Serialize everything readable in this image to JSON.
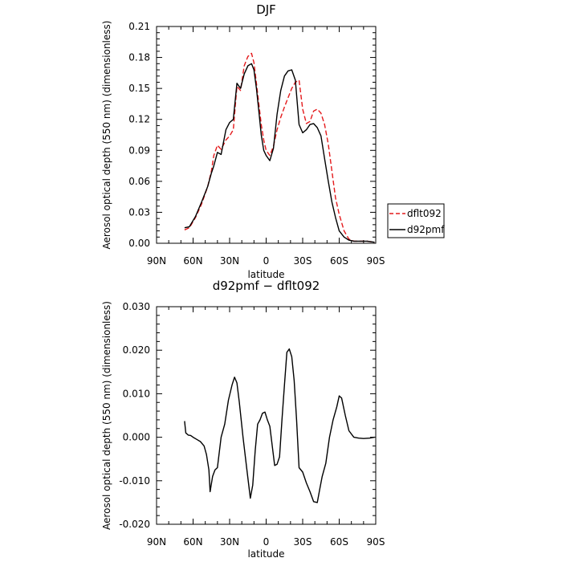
{
  "chart_data": [
    {
      "type": "line",
      "title": "DJF",
      "xlabel": "latitude",
      "ylabel": "Aerosol optical depth (550 nm) (dimensionless)",
      "xlim": [
        90,
        -90
      ],
      "ylim": [
        0,
        0.21
      ],
      "x_tick_values": [
        90,
        60,
        30,
        0,
        -30,
        -60,
        -90
      ],
      "x_tick_labels": [
        "90N",
        "60N",
        "30N",
        "0",
        "30S",
        "60S",
        "90S"
      ],
      "y_tick_values": [
        0,
        0.03,
        0.06,
        0.09,
        0.12,
        0.15,
        0.18,
        0.21
      ],
      "y_tick_labels": [
        "0.00",
        "0.03",
        "0.06",
        "0.09",
        "0.12",
        "0.15",
        "0.18",
        "0.21"
      ],
      "legend_position": "right",
      "grid": false,
      "series": [
        {
          "name": "dflt092",
          "color": "#e41a1c",
          "style": "dashed",
          "x": [
            67,
            63,
            58,
            53,
            48,
            45,
            43,
            40,
            37,
            33,
            30,
            27,
            24,
            21,
            18,
            15,
            12,
            10,
            8,
            6,
            4,
            2,
            0,
            -3,
            -6,
            -9,
            -12,
            -15,
            -18,
            -21,
            -24,
            -27,
            -30,
            -33,
            -36,
            -39,
            -42,
            -45,
            -48,
            -51,
            -54,
            -57,
            -60,
            -64,
            -68,
            -72,
            -77,
            -83,
            -89
          ],
          "y": [
            0.013,
            0.015,
            0.025,
            0.038,
            0.055,
            0.07,
            0.085,
            0.095,
            0.091,
            0.1,
            0.104,
            0.11,
            0.152,
            0.148,
            0.172,
            0.181,
            0.184,
            0.175,
            0.155,
            0.135,
            0.115,
            0.1,
            0.09,
            0.085,
            0.094,
            0.11,
            0.122,
            0.132,
            0.141,
            0.15,
            0.156,
            0.158,
            0.13,
            0.116,
            0.118,
            0.128,
            0.13,
            0.126,
            0.115,
            0.096,
            0.07,
            0.044,
            0.028,
            0.012,
            0.004,
            0.002,
            0.002,
            0.002,
            0.001
          ]
        },
        {
          "name": "d92pmf",
          "color": "#000000",
          "style": "solid",
          "x": [
            67,
            63,
            58,
            53,
            48,
            45,
            43,
            40,
            37,
            33,
            30,
            27,
            24,
            21,
            18,
            15,
            12,
            10,
            8,
            6,
            4,
            2,
            0,
            -3,
            -6,
            -9,
            -12,
            -15,
            -18,
            -21,
            -24,
            -27,
            -30,
            -33,
            -36,
            -39,
            -42,
            -45,
            -48,
            -51,
            -54,
            -57,
            -60,
            -64,
            -68,
            -72,
            -77,
            -83,
            -89
          ],
          "y": [
            0.015,
            0.016,
            0.026,
            0.04,
            0.055,
            0.068,
            0.075,
            0.088,
            0.086,
            0.11,
            0.117,
            0.12,
            0.155,
            0.15,
            0.164,
            0.172,
            0.174,
            0.168,
            0.15,
            0.128,
            0.105,
            0.09,
            0.085,
            0.08,
            0.092,
            0.125,
            0.148,
            0.162,
            0.167,
            0.168,
            0.158,
            0.115,
            0.107,
            0.11,
            0.115,
            0.116,
            0.112,
            0.104,
            0.082,
            0.06,
            0.04,
            0.025,
            0.012,
            0.006,
            0.003,
            0.002,
            0.002,
            0.002,
            0.001
          ]
        }
      ]
    },
    {
      "type": "line",
      "title": "d92pmf − dflt092",
      "xlabel": "latitude",
      "ylabel": "Aerosol optical depth (550 nm) (dimensionless)",
      "xlim": [
        90,
        -90
      ],
      "ylim": [
        -0.02,
        0.03
      ],
      "x_tick_values": [
        90,
        60,
        30,
        0,
        -30,
        -60,
        -90
      ],
      "x_tick_labels": [
        "90N",
        "60N",
        "30N",
        "0",
        "30S",
        "60S",
        "90S"
      ],
      "y_tick_values": [
        -0.02,
        -0.01,
        0,
        0.01,
        0.02,
        0.03
      ],
      "y_tick_labels": [
        "-0.020",
        "-0.010",
        "0.000",
        "0.010",
        "0.020",
        "0.030"
      ],
      "grid": false,
      "series": [
        {
          "color": "#000000",
          "style": "solid",
          "x": [
            67,
            66,
            64,
            62,
            60,
            57,
            54,
            51,
            49,
            47,
            46,
            44,
            42,
            40,
            37,
            34,
            31,
            28,
            26,
            24,
            22,
            19,
            16,
            13,
            11,
            9,
            7,
            5,
            3,
            1,
            -1,
            -3,
            -5,
            -7,
            -9,
            -11,
            -13,
            -15,
            -17,
            -19,
            -21,
            -23,
            -25,
            -27,
            -30,
            -33,
            -36,
            -39,
            -42,
            -44,
            -46,
            -49,
            -52,
            -55,
            -58,
            -60,
            -62,
            -65,
            -68,
            -72,
            -76,
            -80,
            -85,
            -89
          ],
          "y": [
            0.0037,
            0.001,
            0.0005,
            0.0004,
            0.0,
            -0.0005,
            -0.001,
            -0.002,
            -0.004,
            -0.0075,
            -0.0125,
            -0.009,
            -0.0075,
            -0.007,
            0.0,
            0.003,
            0.0085,
            0.012,
            0.0138,
            0.0125,
            0.008,
            0.0,
            -0.007,
            -0.014,
            -0.011,
            -0.003,
            0.003,
            0.004,
            0.0055,
            0.0058,
            0.004,
            0.0025,
            -0.002,
            -0.0065,
            -0.0062,
            -0.0045,
            0.004,
            0.012,
            0.0195,
            0.0203,
            0.0185,
            0.013,
            0.004,
            -0.007,
            -0.008,
            -0.0105,
            -0.0125,
            -0.0148,
            -0.015,
            -0.012,
            -0.009,
            -0.006,
            0.0,
            0.004,
            0.007,
            0.0095,
            0.009,
            0.005,
            0.0015,
            0.0,
            -0.0002,
            -0.0003,
            -0.0002,
            0.0
          ]
        }
      ]
    }
  ]
}
